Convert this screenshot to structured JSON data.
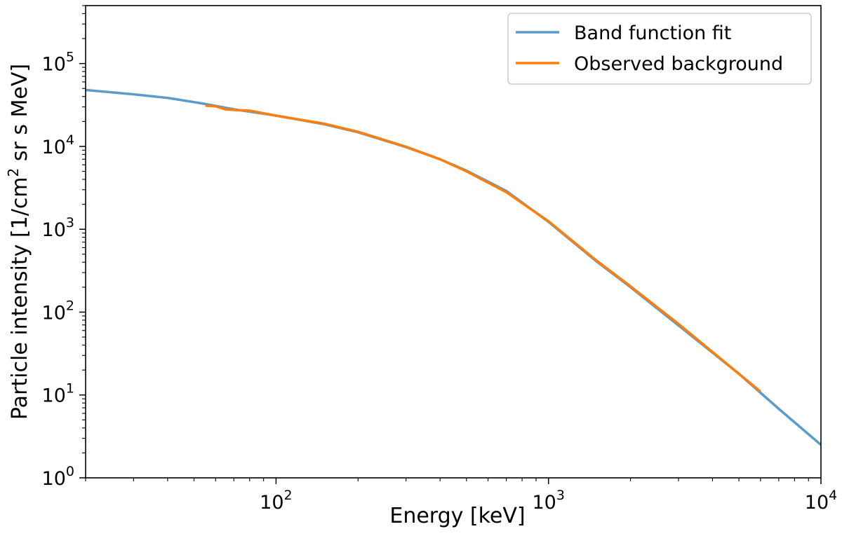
{
  "chart_data": {
    "type": "line",
    "title": "",
    "xlabel": "Energy [keV]",
    "ylabel": {
      "prefix": "Particle intensity [1/cm",
      "sup": "2",
      "suffix": " sr s MeV]"
    },
    "xscale": "log",
    "yscale": "log",
    "xlim": [
      20,
      10000
    ],
    "ylim": [
      1,
      500000
    ],
    "grid": false,
    "legend_position": "top-right",
    "x_major_ticks": [
      {
        "value": 100,
        "base": "10",
        "exp": "2"
      },
      {
        "value": 1000,
        "base": "10",
        "exp": "3"
      },
      {
        "value": 10000,
        "base": "10",
        "exp": "4"
      }
    ],
    "y_major_ticks": [
      {
        "value": 1,
        "base": "10",
        "exp": "0"
      },
      {
        "value": 10,
        "base": "10",
        "exp": "1"
      },
      {
        "value": 100,
        "base": "10",
        "exp": "2"
      },
      {
        "value": 1000,
        "base": "10",
        "exp": "3"
      },
      {
        "value": 10000,
        "base": "10",
        "exp": "4"
      },
      {
        "value": 100000,
        "base": "10",
        "exp": "5"
      }
    ],
    "series": [
      {
        "name": "Band function fit",
        "color": "#5b9bc9",
        "x": [
          20,
          30,
          40,
          55,
          70,
          100,
          150,
          200,
          300,
          400,
          500,
          700,
          1000,
          1500,
          2000,
          3000,
          5000,
          7000,
          10000
        ],
        "y": [
          48000,
          42500,
          38500,
          32500,
          28000,
          23500,
          18500,
          14800,
          9800,
          7000,
          5100,
          2900,
          1230,
          410,
          200,
          69,
          18,
          6.8,
          2.5
        ]
      },
      {
        "name": "Observed background",
        "color": "#ff7f0e",
        "x": [
          55,
          60,
          65,
          70,
          80,
          100,
          150,
          200,
          300,
          400,
          500,
          700,
          1000,
          1500,
          2000,
          3000,
          4000,
          5000,
          6000
        ],
        "y": [
          31000,
          30500,
          28000,
          27500,
          27000,
          23500,
          18800,
          15000,
          9900,
          7000,
          5000,
          2800,
          1250,
          420,
          205,
          72,
          33,
          18,
          11
        ]
      }
    ]
  }
}
